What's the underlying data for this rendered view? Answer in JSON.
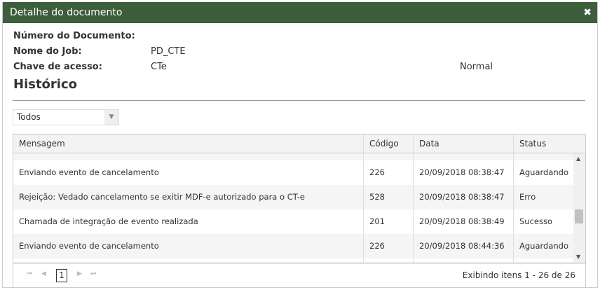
{
  "dialog": {
    "title": "Detalhe do documento",
    "close_icon": "close-icon"
  },
  "fields": [
    {
      "label": "Número do Documento:",
      "value": ""
    },
    {
      "label": "Nome do Job:",
      "value": "PD_CTE"
    },
    {
      "label": "Chave de acesso:",
      "value": "CTe",
      "extra": "Normal"
    }
  ],
  "history": {
    "title": "Histórico",
    "filter": "Todos"
  },
  "table": {
    "columns": [
      "Mensagem",
      "Código",
      "Data",
      "Status"
    ],
    "rows": [
      [
        "Enviando evento de cancelamento",
        "226",
        "20/09/2018 08:38:47",
        "Aguardando"
      ],
      [
        "Rejeição: Vedado cancelamento se exitir MDF-e autorizado para o CT-e",
        "528",
        "20/09/2018 08:38:47",
        "Erro"
      ],
      [
        "Chamada de integração de evento realizada",
        "201",
        "20/09/2018 08:38:49",
        "Sucesso"
      ],
      [
        "Enviando evento de cancelamento",
        "226",
        "20/09/2018 08:44:36",
        "Aguardando"
      ]
    ]
  },
  "pager": {
    "current": "1",
    "info": "Exibindo itens 1 - 26 de 26"
  }
}
